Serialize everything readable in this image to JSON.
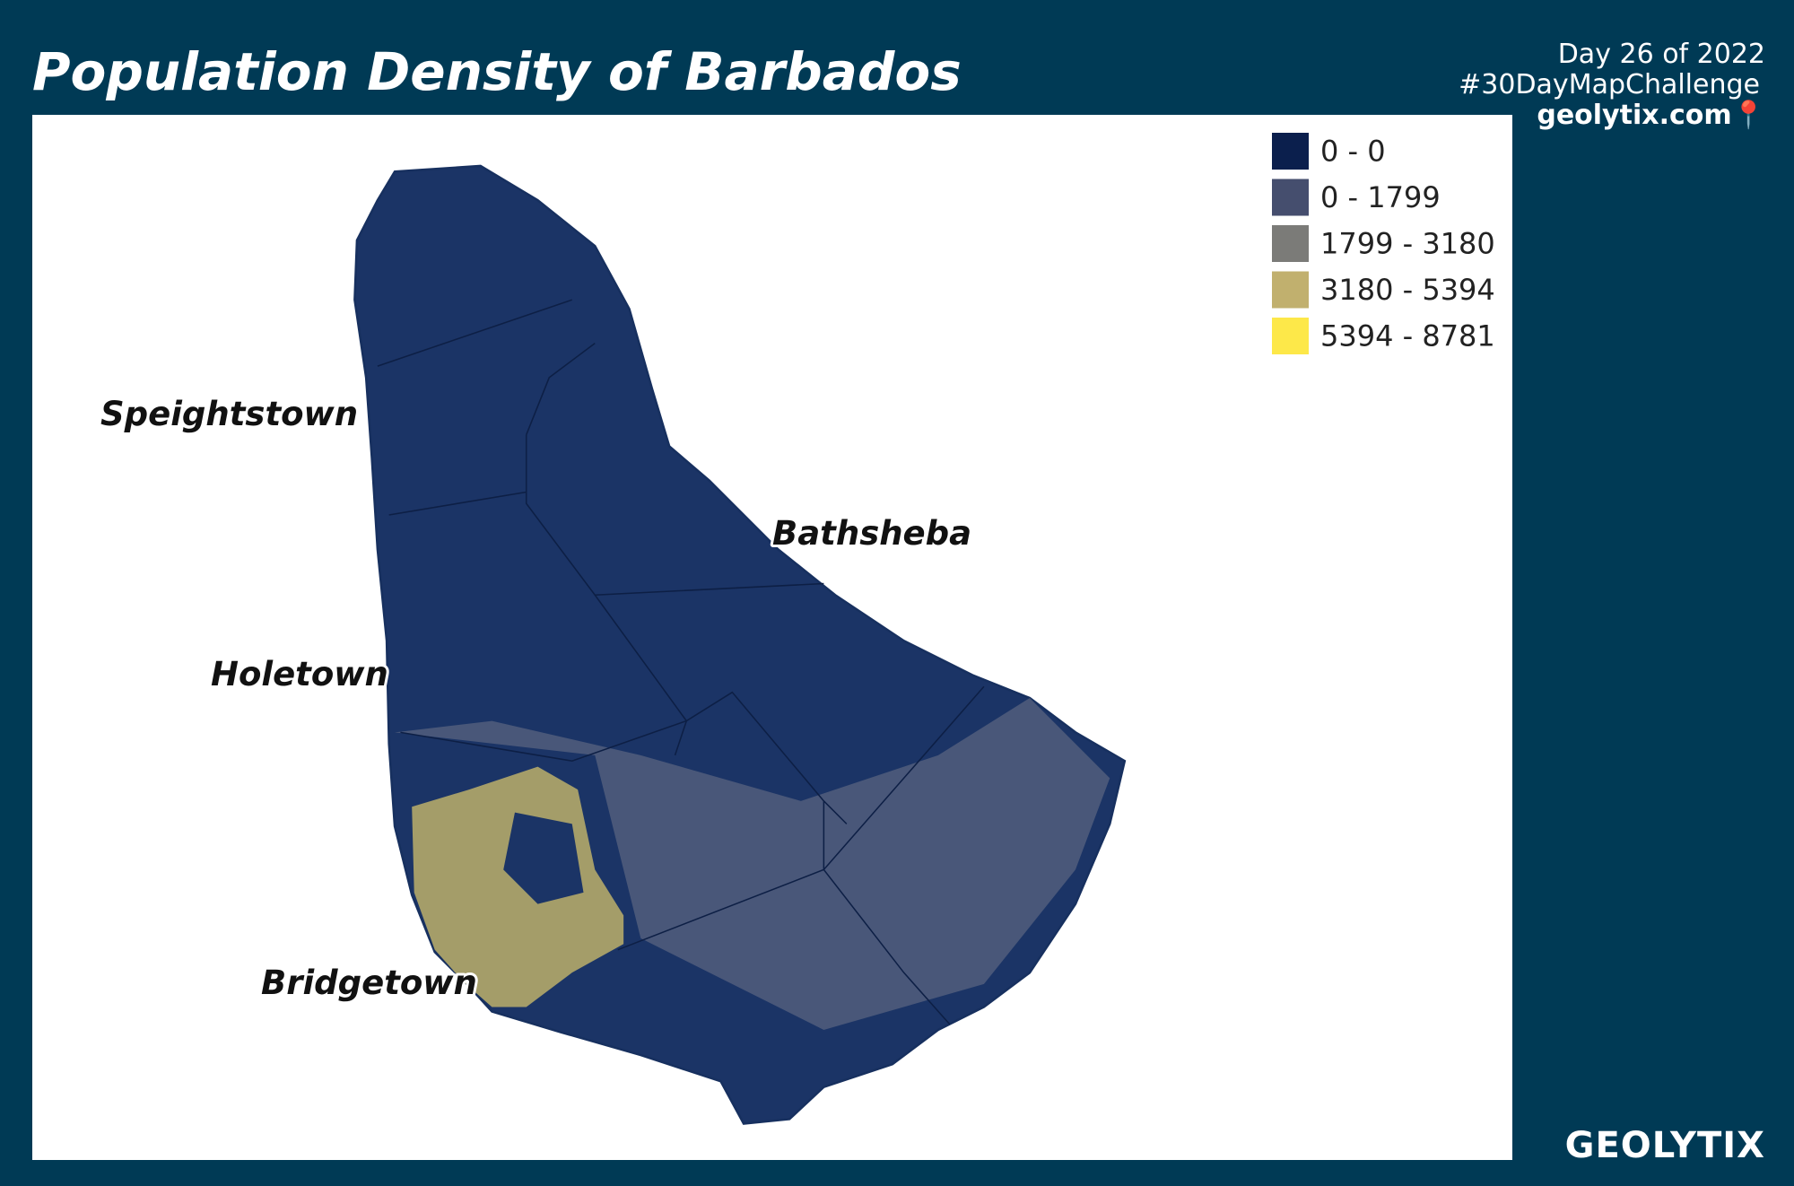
{
  "header": {
    "title": "Population Density of Barbados",
    "credits": [
      "Day 26 of 2022",
      "#30DayMapChallenge",
      "geolytix.com📍"
    ]
  },
  "legend": {
    "items": [
      {
        "label": "0 - 0",
        "color": "#0b1f4d"
      },
      {
        "label": "0 - 1799",
        "color": "#454e6e"
      },
      {
        "label": "1799 - 3180",
        "color": "#7b7b78"
      },
      {
        "label": "3180 - 5394",
        "color": "#c1b06e"
      },
      {
        "label": "5394 - 8781",
        "color": "#fde849"
      }
    ]
  },
  "places": [
    "Speightstown",
    "Bathsheba",
    "Holetown",
    "Bridgetown"
  ],
  "footer": {
    "logo": "GEOLYTIX"
  }
}
